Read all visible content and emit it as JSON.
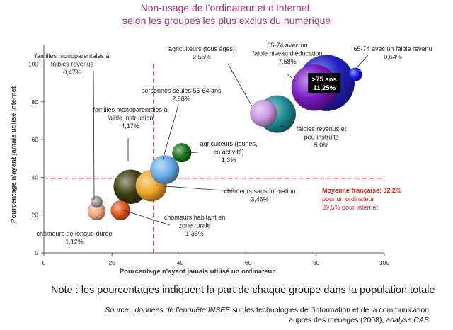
{
  "title_line1": "Non-usage de l’ordinateur et d’Internet,",
  "title_line2": "selon les groupes les plus exclus du numérique",
  "note": "Note : les pourcentages indiquent la part de chaque groupe dans la population totale",
  "source_a": "Source : données de l’enquête INSEE",
  "source_b": " sur les technologies de l’information et de la communication",
  "source_c": "auprès des ménages (2008),",
  "source_d": " analyse CAS",
  "chart_data": {
    "type": "scatter",
    "subtype": "bubble",
    "xlabel": "Pourcentage n'ayant jamais utilisé un ordinateur",
    "ylabel": "Pourcentage n'ayant jamais utilisé Internet",
    "xlim": [
      0,
      100
    ],
    "ylim": [
      0,
      110
    ],
    "xticks": [
      0,
      20,
      40,
      60,
      80,
      100
    ],
    "yticks": [
      0,
      20,
      40,
      60,
      80,
      100
    ],
    "reference": {
      "x": 32.2,
      "y": 39.5,
      "label_title": "Moyenne française: 32,2%",
      "label_line2": "pour un ordinateur",
      "label_line3": "39,5%  pour Internet"
    },
    "points": [
      {
        "label": "familles monoparentales à faibles revenus",
        "share": "0,47%",
        "x": 15.5,
        "y": 27,
        "size": 0.47,
        "color": "#9a9a9a"
      },
      {
        "label": "chômeurs de longue durée",
        "share": "1,12%",
        "x": 15.5,
        "y": 22,
        "size": 1.12,
        "color": "#f2a77c"
      },
      {
        "label": "chômeurs habitant en zone rurale",
        "share": "1,35%",
        "x": 22.5,
        "y": 22.5,
        "size": 1.35,
        "color": "#e1551c"
      },
      {
        "label": "familles monoparentales à faible instruction",
        "share": "4,17%",
        "x": 25.5,
        "y": 35,
        "size": 4.17,
        "color": "#3d3d10"
      },
      {
        "label": "chômeurs sans formation",
        "share": "3,46%",
        "x": 31.5,
        "y": 35.5,
        "size": 3.46,
        "color": "#f0a628"
      },
      {
        "label": "personnes seules 55-64 ans",
        "share": "2.98%",
        "x": 35.5,
        "y": 44,
        "size": 2.98,
        "color": "#6aaee8"
      },
      {
        "label": "agriculteurs (jeunes, en activité)",
        "share": "1,3%",
        "x": 40.5,
        "y": 53,
        "size": 1.3,
        "color": "#1a7a1a"
      },
      {
        "label": "agriculteurs (tous âges)",
        "share": "2,55%",
        "x": 64.5,
        "y": 74,
        "size": 2.55,
        "color": "#c99ae4"
      },
      {
        "label": "faibles revenus et peu instruits",
        "share": "5,0%",
        "x": 68.5,
        "y": 73.5,
        "size": 5.0,
        "color": "#1e8c96"
      },
      {
        "label": "65-74 avec un faible niveau d'éducation",
        "share": "7,58%",
        "x": 79.5,
        "y": 87.5,
        "size": 7.58,
        "color": "#7a18c2"
      },
      {
        "label": ">75 ans",
        "share": "11,25%",
        "x": 83,
        "y": 90,
        "size": 11.25,
        "color": "#2222c8"
      },
      {
        "label": "65-74 avec un faible revenu",
        "share": "0,64%",
        "x": 91.5,
        "y": 94.5,
        "size": 0.64,
        "color": "#1a1ae6"
      }
    ]
  }
}
